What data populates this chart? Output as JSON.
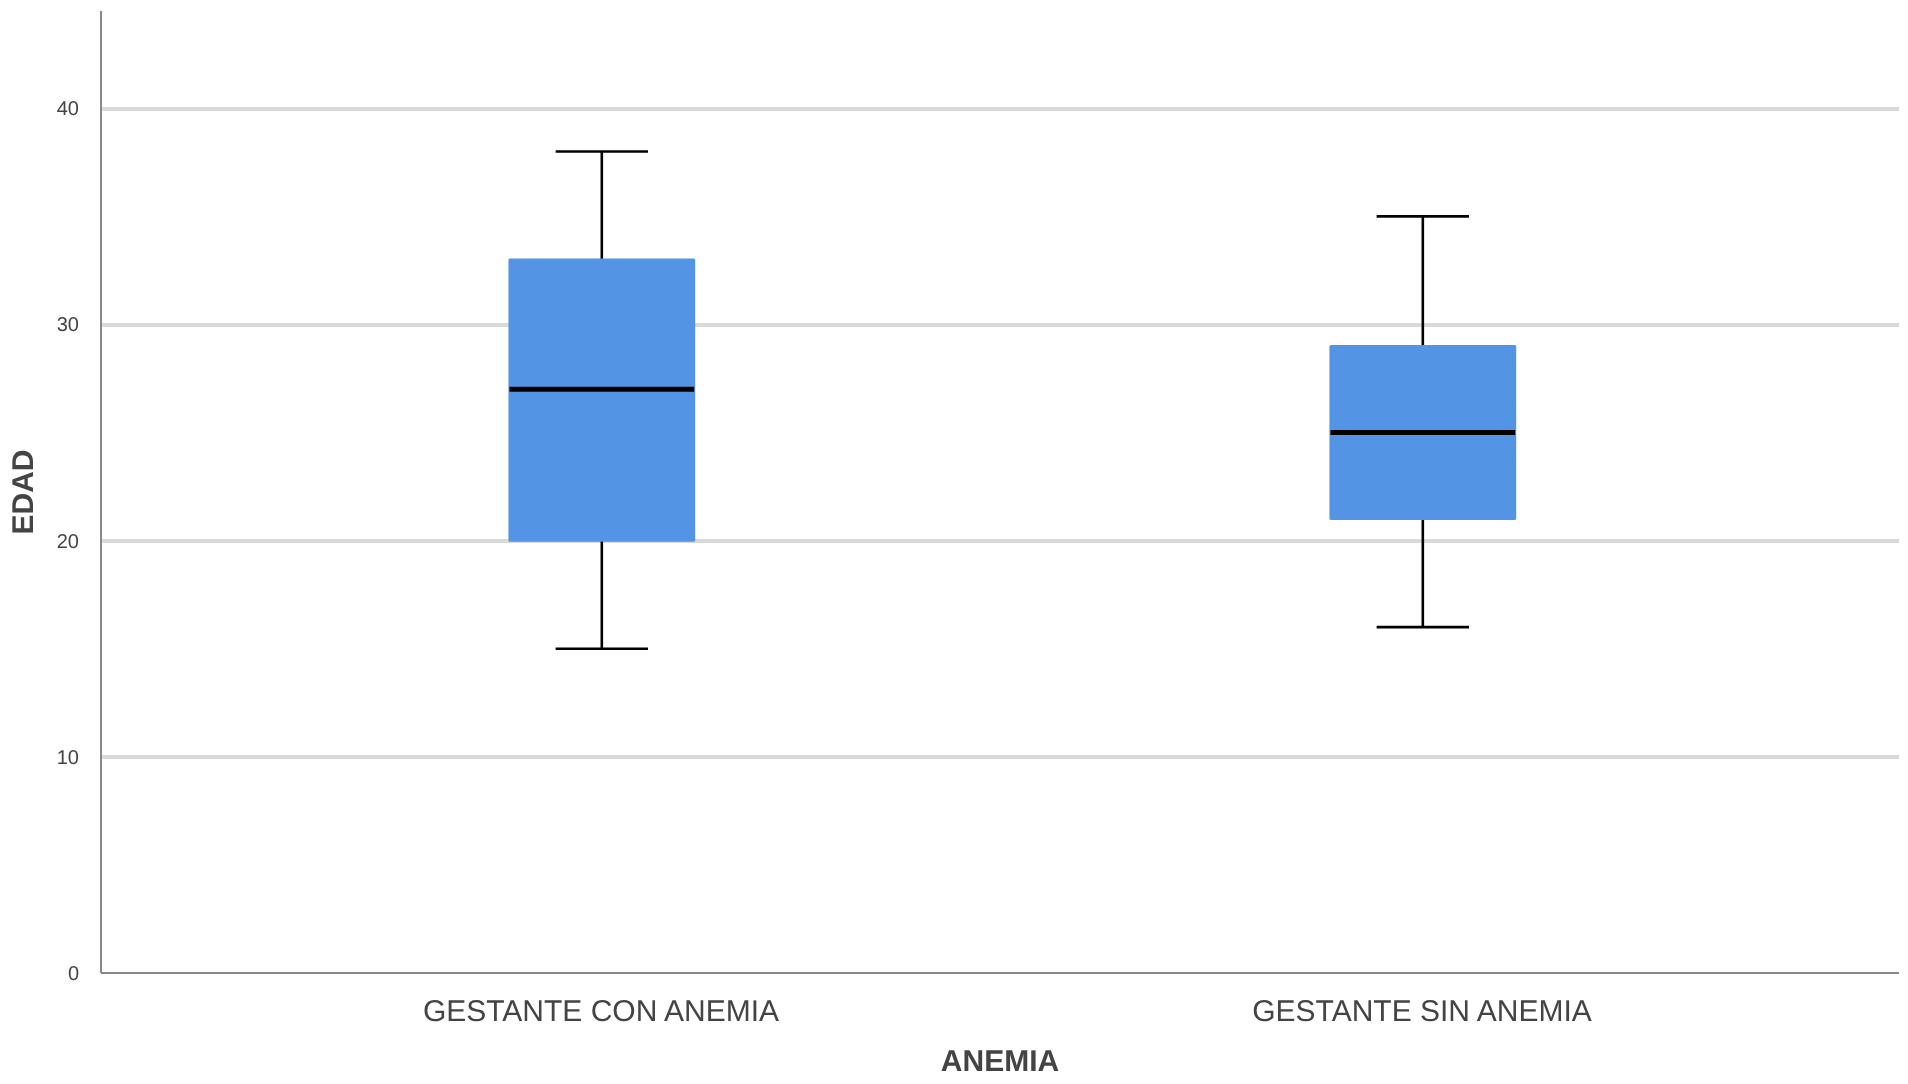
{
  "chart_data": {
    "type": "box",
    "xlabel": "ANEMIA",
    "ylabel": "EDAD",
    "categories": [
      "GESTANTE CON ANEMIA",
      "GESTANTE SIN ANEMIA"
    ],
    "boxes": [
      {
        "low": 15,
        "q1": 20,
        "median": 27,
        "q3": 33,
        "high": 38
      },
      {
        "low": 16,
        "q1": 21,
        "median": 25,
        "q3": 29,
        "high": 35
      }
    ],
    "color": "#5394e5",
    "ylim": [
      0,
      44.5
    ],
    "yticks": [
      0,
      10,
      20,
      30,
      40
    ],
    "grid": "y"
  }
}
